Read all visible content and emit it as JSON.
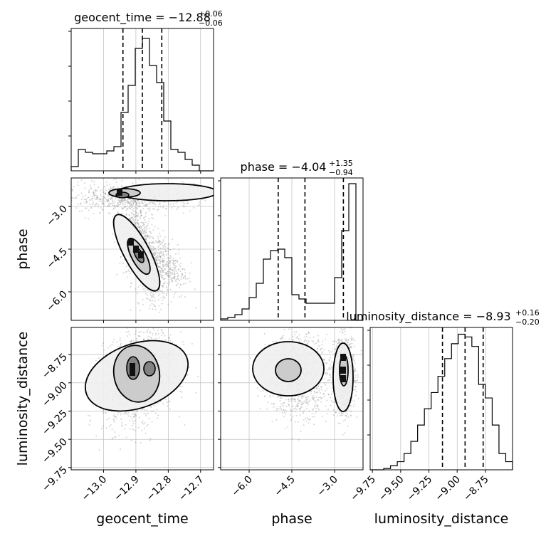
{
  "chart_data": {
    "type": "corner",
    "parameters": [
      "geocent_time",
      "phase",
      "luminosity_distance"
    ],
    "titles": [
      {
        "param": "geocent_time",
        "prefix": "geocent_time = ",
        "median": "−12.88",
        "upper": "+0.06",
        "lower": "−0.06"
      },
      {
        "param": "phase",
        "prefix": "phase = ",
        "median": "−4.04",
        "upper": "+1.35",
        "lower": "−0.94"
      },
      {
        "param": "luminosity_distance",
        "prefix": "luminosity_distance = ",
        "median": "−8.93",
        "upper": "+0.16",
        "lower": "−0.20"
      }
    ],
    "ranges": {
      "geocent_time": [
        -13.1,
        -12.66
      ],
      "phase": [
        -7.0,
        -2.0
      ],
      "luminosity_distance": [
        -9.77,
        -8.51
      ]
    },
    "ticks": {
      "geocent_time": {
        "values": [
          -13.0,
          -12.9,
          -12.8,
          -12.7
        ],
        "labels": [
          "−13.0",
          "−12.9",
          "−12.8",
          "−12.7"
        ]
      },
      "phase": {
        "values": [
          -6.0,
          -4.5,
          -3.0
        ],
        "labels": [
          "−6.0",
          "−4.5",
          "−3.0"
        ]
      },
      "luminosity_distance": {
        "values": [
          -9.75,
          -9.5,
          -9.25,
          -9.0,
          -8.75
        ],
        "labels": [
          "−9.75",
          "−9.50",
          "−9.25",
          "−9.00",
          "−8.75"
        ]
      }
    },
    "quantile_lines": {
      "geocent_time": [
        -12.94,
        -12.88,
        -12.82
      ],
      "phase": [
        -4.98,
        -4.04,
        -2.69
      ],
      "luminosity_distance": [
        -9.13,
        -8.93,
        -8.77
      ]
    },
    "histograms": {
      "geocent_time": [
        0.03,
        0.15,
        0.13,
        0.12,
        0.12,
        0.14,
        0.17,
        0.41,
        0.6,
        0.86,
        0.93,
        0.74,
        0.62,
        0.35,
        0.15,
        0.13,
        0.08,
        0.04,
        0.0,
        0.0
      ],
      "phase": [
        0.01,
        0.02,
        0.04,
        0.08,
        0.16,
        0.26,
        0.43,
        0.49,
        0.5,
        0.44,
        0.18,
        0.15,
        0.12,
        0.12,
        0.12,
        0.12,
        0.3,
        0.63,
        0.96,
        0.0
      ],
      "luminosity_distance": [
        0.0,
        0.0,
        0.01,
        0.03,
        0.06,
        0.12,
        0.21,
        0.33,
        0.45,
        0.57,
        0.69,
        0.82,
        0.93,
        1.0,
        0.98,
        0.91,
        0.63,
        0.53,
        0.33,
        0.12,
        0.06
      ]
    },
    "hist_ylim": {
      "geocent_time": [
        0,
        1.0
      ],
      "phase": [
        0,
        1.0
      ],
      "luminosity_distance": [
        0,
        1.05
      ]
    },
    "grid": true,
    "contour_levels": [
      "0.39",
      "0.86",
      "0.99"
    ]
  }
}
